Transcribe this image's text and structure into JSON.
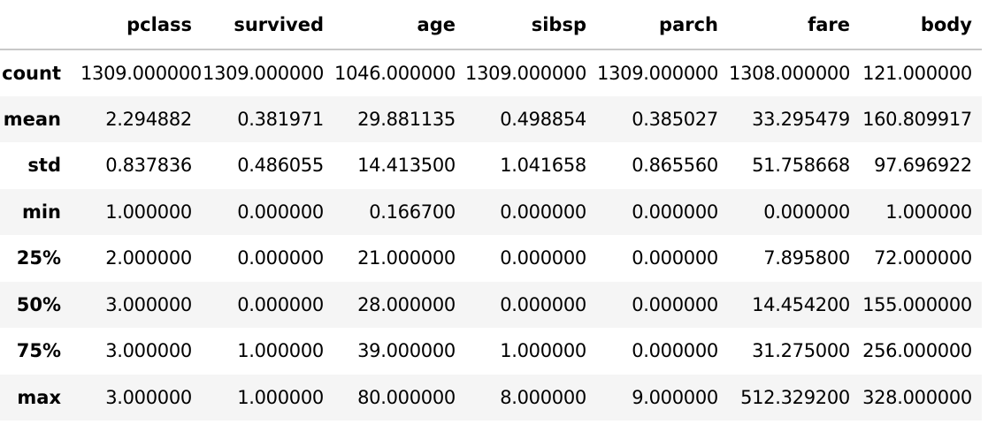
{
  "table": {
    "index_header": "",
    "columns": [
      "pclass",
      "survived",
      "age",
      "sibsp",
      "parch",
      "fare",
      "body"
    ],
    "rows": [
      {
        "label": "count",
        "values": [
          "1309.000000",
          "1309.000000",
          "1046.000000",
          "1309.000000",
          "1309.000000",
          "1308.000000",
          "121.000000"
        ]
      },
      {
        "label": "mean",
        "values": [
          "2.294882",
          "0.381971",
          "29.881135",
          "0.498854",
          "0.385027",
          "33.295479",
          "160.809917"
        ]
      },
      {
        "label": "std",
        "values": [
          "0.837836",
          "0.486055",
          "14.413500",
          "1.041658",
          "0.865560",
          "51.758668",
          "97.696922"
        ]
      },
      {
        "label": "min",
        "values": [
          "1.000000",
          "0.000000",
          "0.166700",
          "0.000000",
          "0.000000",
          "0.000000",
          "1.000000"
        ]
      },
      {
        "label": "25%",
        "values": [
          "2.000000",
          "0.000000",
          "21.000000",
          "0.000000",
          "0.000000",
          "7.895800",
          "72.000000"
        ]
      },
      {
        "label": "50%",
        "values": [
          "3.000000",
          "0.000000",
          "28.000000",
          "0.000000",
          "0.000000",
          "14.454200",
          "155.000000"
        ]
      },
      {
        "label": "75%",
        "values": [
          "3.000000",
          "1.000000",
          "39.000000",
          "1.000000",
          "0.000000",
          "31.275000",
          "256.000000"
        ]
      },
      {
        "label": "max",
        "values": [
          "3.000000",
          "1.000000",
          "80.000000",
          "8.000000",
          "9.000000",
          "512.329200",
          "328.000000"
        ]
      }
    ]
  }
}
